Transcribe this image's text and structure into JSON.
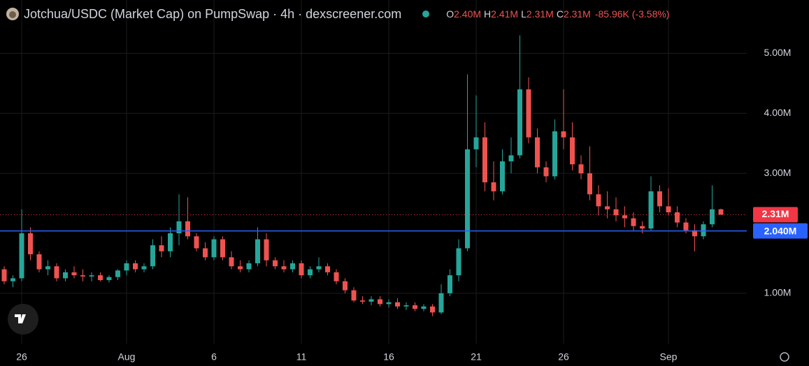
{
  "chart_data": {
    "type": "candlestick",
    "title": "Jotchua/USDC (Market Cap) on PumpSwap · 4h · dexscreener.com",
    "header_values": [
      {
        "key": "O",
        "text": "2.40M"
      },
      {
        "key": "H",
        "text": "2.41M"
      },
      {
        "key": "L",
        "text": "2.31M"
      },
      {
        "key": "C",
        "text": "2.31M"
      }
    ],
    "change_text": "-85.96K (-3.58%)",
    "up_color": "#26a69a",
    "down_color": "#ef5350",
    "categories": [
      null,
      null,
      "26",
      null,
      null,
      null,
      null,
      null,
      null,
      null,
      null,
      null,
      null,
      null,
      "Aug",
      null,
      null,
      null,
      null,
      null,
      null,
      null,
      null,
      null,
      "6",
      null,
      null,
      null,
      null,
      null,
      null,
      null,
      null,
      null,
      "11",
      null,
      null,
      null,
      null,
      null,
      null,
      null,
      null,
      null,
      "16",
      null,
      null,
      null,
      null,
      null,
      null,
      null,
      null,
      null,
      "21",
      null,
      null,
      null,
      null,
      null,
      null,
      null,
      null,
      null,
      "26",
      null,
      null,
      null,
      null,
      null,
      null,
      null,
      null,
      null,
      null,
      null,
      "Sep",
      null,
      null,
      null,
      null,
      null,
      null
    ],
    "series": [
      {
        "open": [
          1.4,
          1.2,
          1.25,
          2.0,
          1.65,
          1.4,
          1.45,
          1.25,
          1.35,
          1.3,
          1.28,
          1.3,
          1.22,
          1.27,
          1.38,
          1.5,
          1.4,
          1.45,
          1.8,
          1.7,
          2.0,
          2.2,
          1.95,
          1.75,
          1.6,
          1.9,
          1.6,
          1.45,
          1.4,
          1.5,
          1.9,
          1.55,
          1.45,
          1.4,
          1.5,
          1.3,
          1.4,
          1.45,
          1.35,
          1.2,
          1.05,
          0.88,
          0.86,
          0.9,
          0.82,
          0.85,
          0.78,
          0.8,
          0.74,
          0.78,
          0.68,
          1.0,
          1.3,
          1.75,
          3.4,
          3.6,
          2.85,
          2.7,
          3.2,
          3.3,
          4.4,
          3.6,
          3.1,
          2.95,
          3.7,
          3.6,
          3.15,
          3.0,
          2.65,
          2.45,
          2.4,
          2.3,
          2.25,
          2.12,
          2.08,
          2.7,
          2.45,
          2.35,
          2.18,
          2.05,
          1.95,
          2.15,
          2.4
        ],
        "high": [
          1.45,
          1.3,
          2.4,
          2.1,
          1.7,
          1.55,
          1.5,
          1.4,
          1.45,
          1.4,
          1.35,
          1.35,
          1.3,
          1.4,
          1.55,
          1.55,
          1.5,
          1.9,
          1.95,
          2.1,
          2.65,
          2.6,
          2.0,
          1.85,
          1.95,
          1.95,
          1.7,
          1.55,
          1.55,
          2.1,
          2.0,
          1.6,
          1.55,
          1.55,
          1.55,
          1.45,
          1.6,
          1.5,
          1.4,
          1.25,
          1.1,
          0.95,
          0.95,
          0.95,
          0.9,
          0.92,
          0.85,
          0.85,
          0.82,
          0.82,
          1.15,
          1.4,
          1.9,
          4.65,
          4.3,
          3.85,
          3.2,
          3.4,
          3.6,
          5.3,
          4.6,
          3.75,
          3.2,
          3.9,
          4.4,
          3.85,
          3.3,
          3.45,
          2.8,
          2.7,
          2.6,
          2.45,
          2.35,
          2.2,
          2.95,
          2.8,
          2.75,
          2.45,
          2.25,
          2.15,
          2.2,
          2.8,
          2.41
        ],
        "low": [
          1.15,
          1.1,
          1.2,
          1.55,
          1.35,
          1.3,
          1.2,
          1.2,
          1.25,
          1.2,
          1.2,
          1.2,
          1.18,
          1.22,
          1.3,
          1.35,
          1.35,
          1.4,
          1.6,
          1.6,
          1.8,
          1.9,
          1.7,
          1.55,
          1.55,
          1.55,
          1.4,
          1.35,
          1.35,
          1.45,
          1.45,
          1.4,
          1.35,
          1.35,
          1.25,
          1.25,
          1.35,
          1.3,
          1.15,
          1.0,
          0.85,
          0.82,
          0.8,
          0.78,
          0.76,
          0.74,
          0.72,
          0.7,
          0.7,
          0.62,
          0.65,
          0.95,
          1.2,
          1.7,
          3.1,
          2.7,
          2.55,
          2.65,
          3.0,
          3.25,
          3.5,
          3.0,
          2.85,
          2.9,
          3.4,
          3.05,
          2.9,
          2.55,
          2.3,
          2.25,
          2.2,
          2.1,
          2.05,
          2.0,
          2.05,
          2.35,
          2.3,
          2.1,
          2.0,
          1.7,
          1.9,
          2.1,
          2.31
        ],
        "close": [
          1.2,
          1.25,
          2.0,
          1.65,
          1.4,
          1.45,
          1.25,
          1.35,
          1.3,
          1.28,
          1.3,
          1.22,
          1.27,
          1.38,
          1.5,
          1.4,
          1.45,
          1.8,
          1.7,
          2.0,
          2.2,
          1.95,
          1.75,
          1.6,
          1.9,
          1.6,
          1.45,
          1.4,
          1.5,
          1.9,
          1.55,
          1.45,
          1.4,
          1.5,
          1.3,
          1.4,
          1.45,
          1.35,
          1.2,
          1.05,
          0.88,
          0.86,
          0.9,
          0.82,
          0.85,
          0.78,
          0.8,
          0.74,
          0.78,
          0.68,
          1.0,
          1.3,
          1.75,
          3.4,
          3.6,
          2.85,
          2.7,
          3.2,
          3.3,
          4.4,
          3.6,
          3.1,
          2.95,
          3.7,
          3.6,
          3.15,
          3.0,
          2.65,
          2.45,
          2.4,
          2.3,
          2.25,
          2.12,
          2.08,
          2.7,
          2.45,
          2.35,
          2.18,
          2.05,
          1.95,
          2.15,
          2.4,
          2.31
        ]
      }
    ],
    "ylim": [
      0.16,
      5.89
    ],
    "yticks": [
      {
        "value": 1,
        "label": "1.00M"
      },
      {
        "value": 3,
        "label": "3.00M"
      },
      {
        "value": 4,
        "label": "4.00M"
      },
      {
        "value": 5,
        "label": "5.00M"
      }
    ],
    "grid": true,
    "last_price": {
      "value": 2.31,
      "label": "2.31M",
      "color": "#f23645"
    },
    "hline": {
      "value": 2.04,
      "label": "2.040M",
      "color": "#2962ff"
    }
  }
}
